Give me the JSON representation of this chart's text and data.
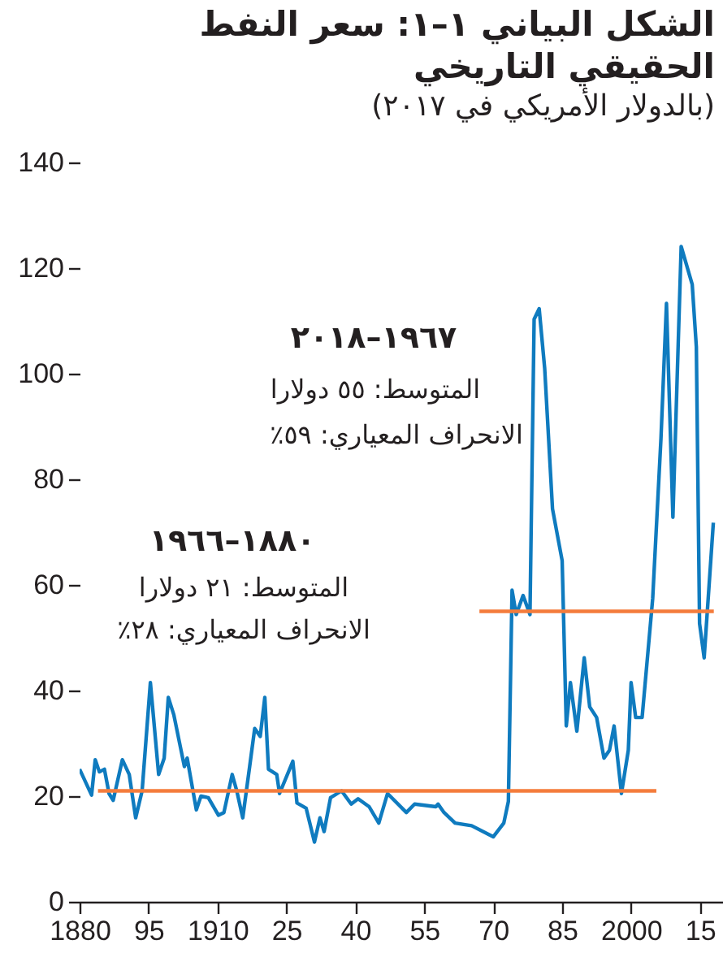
{
  "chart_data": {
    "type": "line",
    "title": "الشكل البياني ١–١: سعر النفط الحقيقي التاريخي",
    "subtitle": "(بالدولار الأمريكي في ٢٠١٧)",
    "annotations": [
      "١٩٦٧–٢٠١٨",
      "المتوسط: ٥٥ دولارا",
      "الانحراف المعياري: ٥٩٪",
      "١٨٨٠–١٩٦٦",
      "المتوسط: ٢١ دولارا",
      "الانحراف المعياري: ٢٨٪"
    ],
    "xlim": [
      1880,
      2020
    ],
    "xticks": [
      1880,
      {
        "value": 1895,
        "label": "95"
      },
      1910,
      {
        "value": 1925,
        "label": "25"
      },
      {
        "value": 1940,
        "label": "40"
      },
      {
        "value": 1955,
        "label": "55"
      },
      {
        "value": 1970,
        "label": "70"
      },
      {
        "value": 1985,
        "label": "85"
      },
      2000,
      {
        "value": 2015,
        "label": "15"
      }
    ],
    "ylim": [
      0,
      140
    ],
    "yticks": [
      0,
      20,
      40,
      60,
      80,
      100,
      120,
      140
    ],
    "series": [
      {
        "color": "#0f7bbf",
        "x": [
          1880,
          1882.6,
          1883.4,
          1884.3,
          1885.4,
          1886.4,
          1887.3,
          1889.3,
          1890.8,
          1892.2,
          1893.6,
          1895.4,
          1897.2,
          1898.4,
          1899.3,
          1900.5,
          1902.8,
          1903.4,
          1905.4,
          1906.4,
          1908,
          1910.2,
          1911.4,
          1913.2,
          1914.2,
          1915.5,
          1917,
          1918.1,
          1919.3,
          1920.3,
          1921.1,
          1922.9,
          1923.5,
          1926.4,
          1927.3,
          1929.3,
          1931.1,
          1932.3,
          1933.2,
          1934.6,
          1937,
          1939.1,
          1940.6,
          1943,
          1945.1,
          1947,
          1951.1,
          1952.9,
          1957.5,
          1958,
          1959.3,
          1961.7,
          1965.3,
          1970,
          1972.3,
          1973.3,
          1974.1,
          1975,
          1976.5,
          1978,
          1978.9,
          1980,
          1981.2,
          1982.9,
          1985,
          1985.9,
          1986.8,
          1988.2,
          1989.8,
          1991,
          1992.5,
          1994.1,
          1995.3,
          1996.3,
          1997.9,
          1999.4,
          2000,
          2001,
          2002.4,
          2004.7,
          2006.5,
          2007.7,
          2009.1,
          2010.9,
          2013.3,
          2014.2,
          2014.9,
          2015.9,
          2017.9
        ],
        "values": [
          25.1,
          20.2,
          26.9,
          24.6,
          25.1,
          20.5,
          19.2,
          26.9,
          24.1,
          15.9,
          21.0,
          41.5,
          24.1,
          27.2,
          38.7,
          35.4,
          25.6,
          27.2,
          17.4,
          20.0,
          19.7,
          16.4,
          16.9,
          24.1,
          21.0,
          15.9,
          25.6,
          32.8,
          31.3,
          38.7,
          25.1,
          24.1,
          20.5,
          26.6,
          18.7,
          17.7,
          11.3,
          15.9,
          13.3,
          19.7,
          21.0,
          18.5,
          19.5,
          18.0,
          14.9,
          20.5,
          16.9,
          18.5,
          18.0,
          18.5,
          16.9,
          14.9,
          14.4,
          12.3,
          14.9,
          19.0,
          59.0,
          54.4,
          58.0,
          54.4,
          110.3,
          112.3,
          101.0,
          74.4,
          64.6,
          33.3,
          41.5,
          32.3,
          46.2,
          36.9,
          34.9,
          27.2,
          28.7,
          33.3,
          20.5,
          28.7,
          41.5,
          34.9,
          34.9,
          57.4,
          87.7,
          113.3,
          72.8,
          124.1,
          116.9,
          105.1,
          52.7,
          46.2,
          71.8
        ]
      },
      {
        "color": "#f47c3c",
        "x": [
          1884,
          2005.5
        ],
        "values": [
          21,
          21
        ]
      },
      {
        "color": "#f47c3c",
        "x": [
          1967,
          2018
        ],
        "values": [
          55,
          55
        ]
      }
    ]
  }
}
